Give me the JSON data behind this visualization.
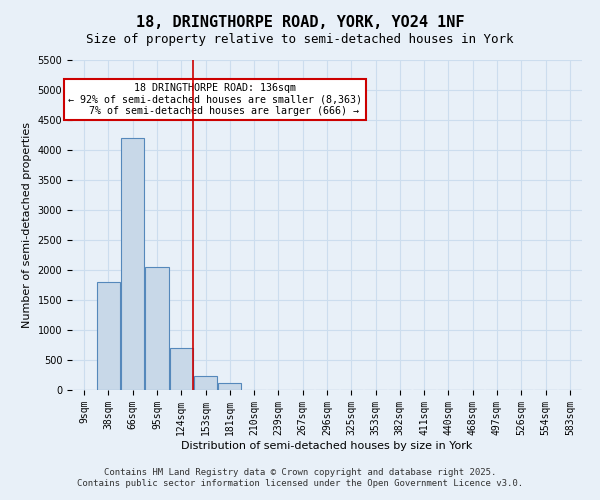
{
  "title_line1": "18, DRINGTHORPE ROAD, YORK, YO24 1NF",
  "title_line2": "Size of property relative to semi-detached houses in York",
  "xlabel": "Distribution of semi-detached houses by size in York",
  "ylabel": "Number of semi-detached properties",
  "categories": [
    "9sqm",
    "38sqm",
    "66sqm",
    "95sqm",
    "124sqm",
    "153sqm",
    "181sqm",
    "210sqm",
    "239sqm",
    "267sqm",
    "296sqm",
    "325sqm",
    "353sqm",
    "382sqm",
    "411sqm",
    "440sqm",
    "468sqm",
    "497sqm",
    "526sqm",
    "554sqm",
    "583sqm"
  ],
  "values": [
    0,
    1800,
    4200,
    2050,
    700,
    240,
    120,
    0,
    0,
    0,
    0,
    0,
    0,
    0,
    0,
    0,
    0,
    0,
    0,
    0,
    0
  ],
  "bar_color": "#c8d8e8",
  "bar_edge_color": "#5588bb",
  "grid_color": "#ccddee",
  "background_color": "#e8f0f8",
  "vline_x": 4.5,
  "vline_color": "#cc0000",
  "annotation_title": "18 DRINGTHORPE ROAD: 136sqm",
  "annotation_line1": "← 92% of semi-detached houses are smaller (8,363)",
  "annotation_line2": "7% of semi-detached houses are larger (666) →",
  "annotation_box_color": "#cc0000",
  "ylim": [
    0,
    5500
  ],
  "yticks": [
    0,
    500,
    1000,
    1500,
    2000,
    2500,
    3000,
    3500,
    4000,
    4500,
    5000,
    5500
  ],
  "footer_line1": "Contains HM Land Registry data © Crown copyright and database right 2025.",
  "footer_line2": "Contains public sector information licensed under the Open Government Licence v3.0.",
  "title_fontsize": 11,
  "subtitle_fontsize": 9,
  "axis_label_fontsize": 8,
  "tick_fontsize": 7,
  "footer_fontsize": 6.5
}
